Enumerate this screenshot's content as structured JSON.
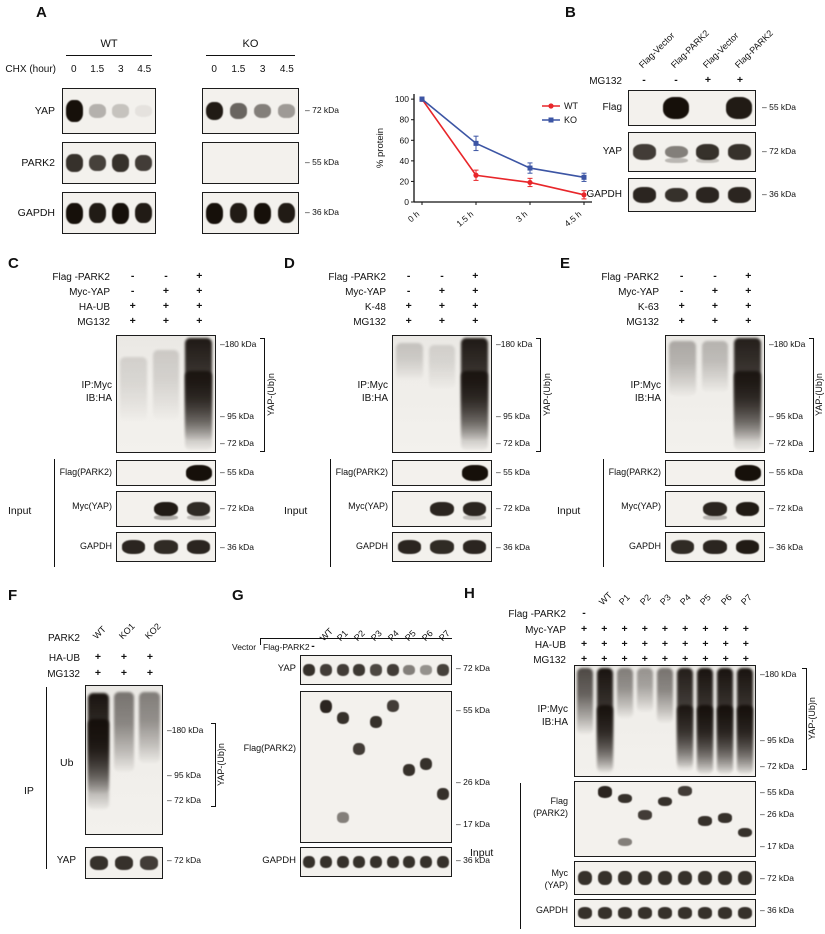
{
  "A": {
    "letter": "A",
    "groups": [
      "WT",
      "KO"
    ],
    "chx_label": "CHX (hour)",
    "times": [
      "0",
      "1.5",
      "3",
      "4.5"
    ],
    "rows": [
      {
        "label": "YAP",
        "marker": "– 72 kDa"
      },
      {
        "label": "PARK2",
        "marker": "– 55 kDa"
      },
      {
        "label": "GAPDH",
        "marker": "– 36 kDa"
      }
    ]
  },
  "chart_data": {
    "type": "line",
    "x": [
      "0 h",
      "1.5 h",
      "3 h",
      "4.5 h"
    ],
    "ylabel": "% protein",
    "yticks": [
      0,
      20,
      40,
      60,
      80,
      100
    ],
    "ylim": [
      0,
      105
    ],
    "grid": false,
    "legend_position": "top-right",
    "series": [
      {
        "name": "WT",
        "color": "#e8262a",
        "marker": "circle",
        "values": [
          100,
          26,
          19,
          7
        ],
        "errors": [
          2,
          5,
          4,
          4
        ]
      },
      {
        "name": "KO",
        "color": "#3c55a4",
        "marker": "square",
        "values": [
          100,
          57,
          33,
          24
        ],
        "errors": [
          2,
          7,
          5,
          4
        ]
      }
    ]
  },
  "B": {
    "letter": "B",
    "lanes": [
      "Flag-Vector",
      "Flag-PARK2",
      "Flag-Vector",
      "Flag-PARK2"
    ],
    "treatment": {
      "label": "MG132",
      "values": [
        "-",
        "-",
        "+",
        "+"
      ]
    },
    "rows": [
      {
        "label": "Flag",
        "marker": "– 55 kDa"
      },
      {
        "label": "YAP",
        "marker": "– 72 kDa"
      },
      {
        "label": "GAPDH",
        "marker": "– 36 kDa"
      }
    ]
  },
  "C": {
    "letter": "C",
    "treatments": [
      {
        "label": "Flag -PARK2",
        "values": [
          "-",
          "-",
          "+"
        ]
      },
      {
        "label": "Myc-YAP",
        "values": [
          "-",
          "+",
          "+"
        ]
      },
      {
        "label": "HA-UB",
        "values": [
          "+",
          "+",
          "+"
        ]
      },
      {
        "label": "MG132",
        "values": [
          "+",
          "+",
          "+"
        ]
      }
    ],
    "ip_line1": "IP:Myc",
    "ip_line2": "IB:HA",
    "ip_markers": [
      "–180 kDa",
      "– 95 kDa",
      "– 72 kDa"
    ],
    "ub_label": "YAP-(Ub)n",
    "input_label": "Input",
    "input_rows": [
      {
        "label": "Flag(PARK2)",
        "marker": "– 55 kDa"
      },
      {
        "label": "Myc(YAP)",
        "marker": "– 72 kDa"
      },
      {
        "label": "GAPDH",
        "marker": "– 36 kDa"
      }
    ]
  },
  "D": {
    "letter": "D",
    "treatments": [
      {
        "label": "Flag -PARK2",
        "values": [
          "-",
          "-",
          "+"
        ]
      },
      {
        "label": "Myc-YAP",
        "values": [
          "-",
          "+",
          "+"
        ]
      },
      {
        "label": "K-48",
        "values": [
          "+",
          "+",
          "+"
        ]
      },
      {
        "label": "MG132",
        "values": [
          "+",
          "+",
          "+"
        ]
      }
    ],
    "ip_line1": "IP:Myc",
    "ip_line2": "IB:HA",
    "ip_markers": [
      "–180 kDa",
      "– 95 kDa",
      "– 72 kDa"
    ],
    "ub_label": "YAP-(Ub)n",
    "input_label": "Input",
    "input_rows": [
      {
        "label": "Flag(PARK2)",
        "marker": "– 55 kDa"
      },
      {
        "label": "Myc(YAP)",
        "marker": "– 72 kDa"
      },
      {
        "label": "GAPDH",
        "marker": "– 36 kDa"
      }
    ]
  },
  "E": {
    "letter": "E",
    "treatments": [
      {
        "label": "Flag -PARK2",
        "values": [
          "-",
          "-",
          "+"
        ]
      },
      {
        "label": "Myc-YAP",
        "values": [
          "-",
          "+",
          "+"
        ]
      },
      {
        "label": "K-63",
        "values": [
          "+",
          "+",
          "+"
        ]
      },
      {
        "label": "MG132",
        "values": [
          "+",
          "+",
          "+"
        ]
      }
    ],
    "ip_line1": "IP:Myc",
    "ip_line2": "IB:HA",
    "ip_markers": [
      "–180 kDa",
      "– 95 kDa",
      "– 72 kDa"
    ],
    "ub_label": "YAP-(Ub)n",
    "input_label": "Input",
    "input_rows": [
      {
        "label": "Flag(PARK2)",
        "marker": "– 55 kDa"
      },
      {
        "label": "Myc(YAP)",
        "marker": "– 72 kDa"
      },
      {
        "label": "GAPDH",
        "marker": "– 36 kDa"
      }
    ]
  },
  "F": {
    "letter": "F",
    "lanes": [
      "WT",
      "KO1",
      "KO2"
    ],
    "treatments": [
      {
        "label": "PARK2",
        "values": []
      },
      {
        "label": "HA-UB",
        "values": [
          "+",
          "+",
          "+"
        ]
      },
      {
        "label": "MG132",
        "values": [
          "+",
          "+",
          "+"
        ]
      }
    ],
    "ip_label": "IP",
    "ub_blot_label": "Ub",
    "ip_markers": [
      "–180 kDa",
      "– 95 kDa",
      "– 72 kDa"
    ],
    "ub_label": "YAP-(Ub)n",
    "yap_row": {
      "label": "YAP",
      "marker": "– 72 kDa"
    }
  },
  "G": {
    "letter": "G",
    "vector_label": "Vector",
    "flag_label": "Flag-PARK2",
    "vector_dash": "-",
    "lanes": [
      "WT",
      "P1",
      "P2",
      "P3",
      "P4",
      "P5",
      "P6",
      "P7"
    ],
    "rows": [
      {
        "label": "YAP"
      },
      {
        "label": "Flag(PARK2)"
      },
      {
        "label": "GAPDH"
      }
    ],
    "yap_marker": "– 72 kDa",
    "flag_markers": [
      "– 55 kDa",
      "– 26 kDa",
      "– 17 kDa"
    ],
    "gapdh_marker": "– 36 kDa"
  },
  "H": {
    "letter": "H",
    "lanes": [
      "WT",
      "P1",
      "P2",
      "P3",
      "P4",
      "P5",
      "P6",
      "P7"
    ],
    "treatments": [
      {
        "label": "Flag -PARK2",
        "dash": "-"
      },
      {
        "label": "Myc-YAP",
        "values": [
          "+",
          "+",
          "+",
          "+",
          "+",
          "+",
          "+",
          "+",
          "+"
        ]
      },
      {
        "label": "HA-UB",
        "values": [
          "+",
          "+",
          "+",
          "+",
          "+",
          "+",
          "+",
          "+",
          "+"
        ]
      },
      {
        "label": "MG132",
        "values": [
          "+",
          "+",
          "+",
          "+",
          "+",
          "+",
          "+",
          "+",
          "+"
        ]
      }
    ],
    "ip_line1": "IP:Myc",
    "ip_line2": "IB:HA",
    "ip_markers": [
      "–180 kDa",
      "– 95 kDa",
      "– 72 kDa"
    ],
    "ub_label": "YAP-(Ub)n",
    "input_label": "Input",
    "input_rows": [
      {
        "label1": "Flag",
        "label2": "(PARK2)"
      },
      {
        "label1": "Myc",
        "label2": "(YAP)"
      },
      {
        "label1": "GAPDH",
        "label2": ""
      }
    ],
    "flag_markers": [
      "– 55 kDa",
      "– 26 kDa",
      "– 17 kDa"
    ],
    "myc_marker": "– 72 kDa",
    "gapdh_marker": "– 36 kDa"
  }
}
